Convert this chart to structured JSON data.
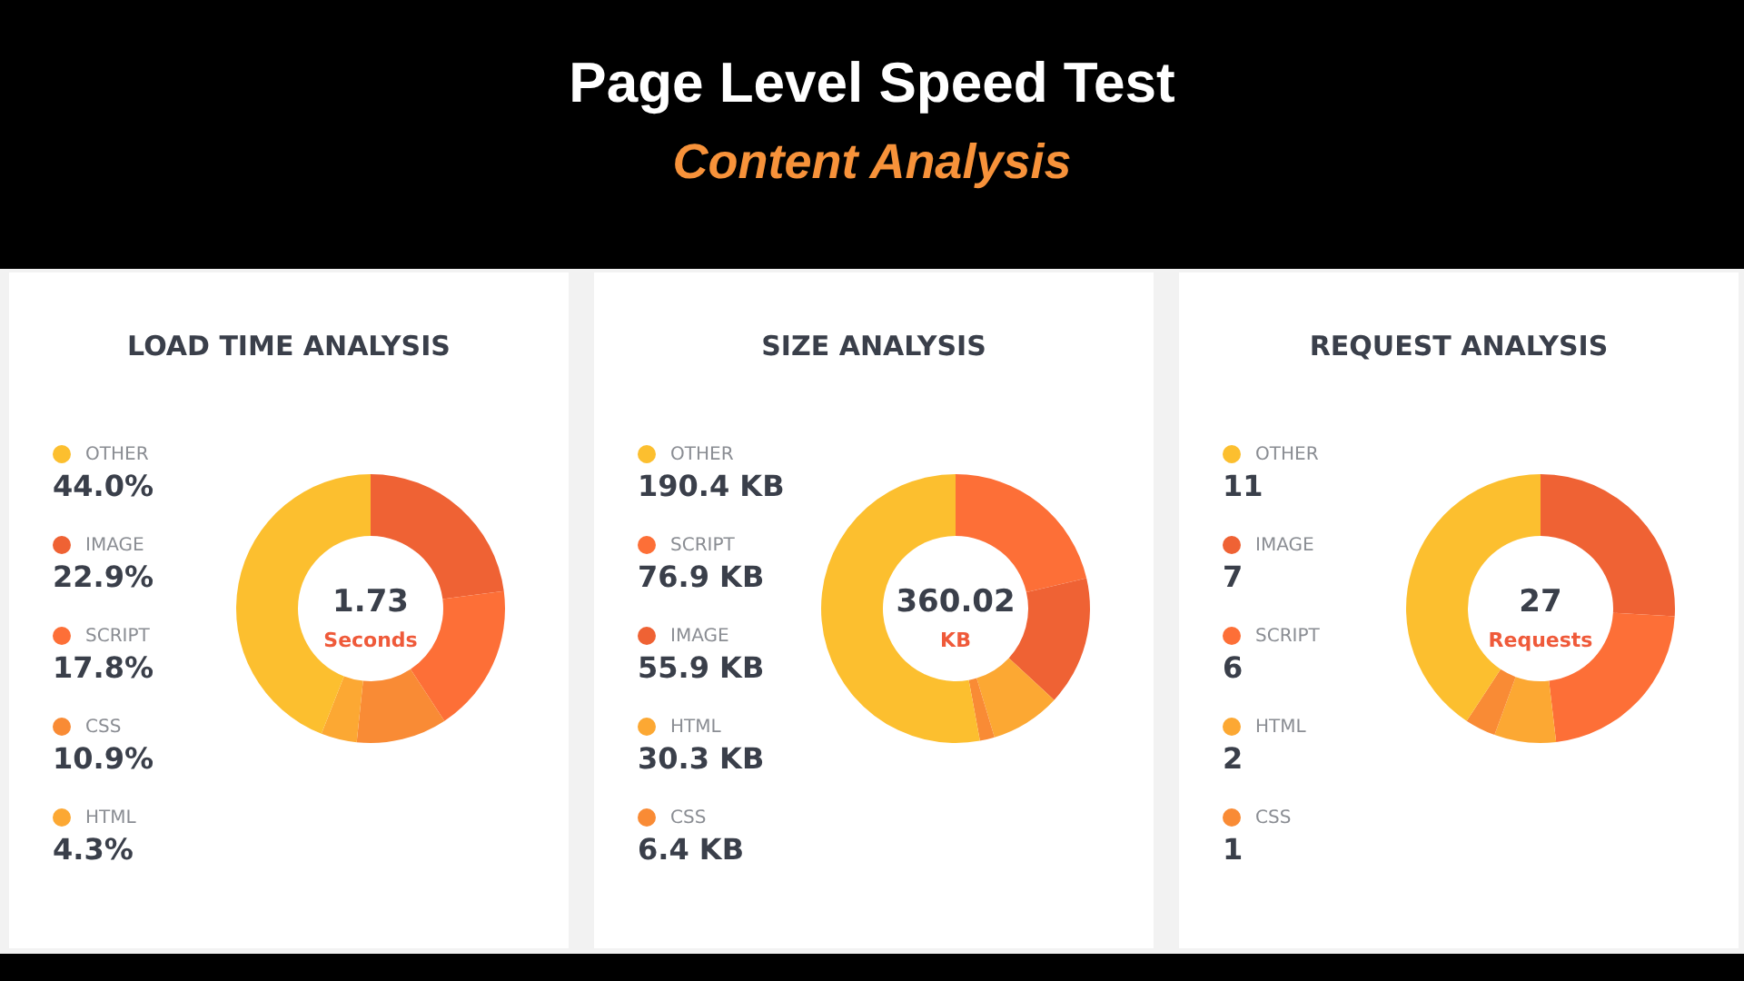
{
  "chart_data": [
    {
      "type": "other",
      "title": "Page Level Speed Test",
      "subtitle": "Content Analysis"
    },
    {
      "type": "donut",
      "title": "LOAD TIME ANALYSIS",
      "categories": [
        "OTHER",
        "IMAGE",
        "SCRIPT",
        "CSS",
        "HTML"
      ],
      "values": [
        44.0,
        22.9,
        17.8,
        10.9,
        4.3
      ],
      "value_labels": [
        "44.0%",
        "22.9%",
        "17.8%",
        "10.9%",
        "4.3%"
      ],
      "colors": [
        "#fcbf2f",
        "#ef6234",
        "#fd6f37",
        "#f98b35",
        "#fca833"
      ],
      "annotations": [
        "1.73",
        "Seconds"
      ],
      "legend": "left"
    },
    {
      "type": "donut",
      "title": "SIZE ANALYSIS",
      "categories": [
        "OTHER",
        "SCRIPT",
        "IMAGE",
        "HTML",
        "CSS"
      ],
      "values": [
        190.4,
        76.9,
        55.9,
        30.3,
        6.4
      ],
      "value_labels": [
        "190.4 KB",
        "76.9 KB",
        "55.9 KB",
        "30.3 KB",
        "6.4 KB"
      ],
      "colors": [
        "#fcbf2f",
        "#fd6f37",
        "#ef6234",
        "#fca833",
        "#f98b35"
      ],
      "annotations": [
        "360.02",
        "KB"
      ],
      "legend": "left"
    },
    {
      "type": "donut",
      "title": "REQUEST ANALYSIS",
      "categories": [
        "OTHER",
        "IMAGE",
        "SCRIPT",
        "HTML",
        "CSS"
      ],
      "values": [
        11,
        7,
        6,
        2,
        1
      ],
      "value_labels": [
        "11",
        "7",
        "6",
        "2",
        "1"
      ],
      "colors": [
        "#fcbf2f",
        "#ef6234",
        "#fd6f37",
        "#fca833",
        "#f98b35"
      ],
      "annotations": [
        "27",
        "Requests"
      ],
      "legend": "left"
    }
  ]
}
